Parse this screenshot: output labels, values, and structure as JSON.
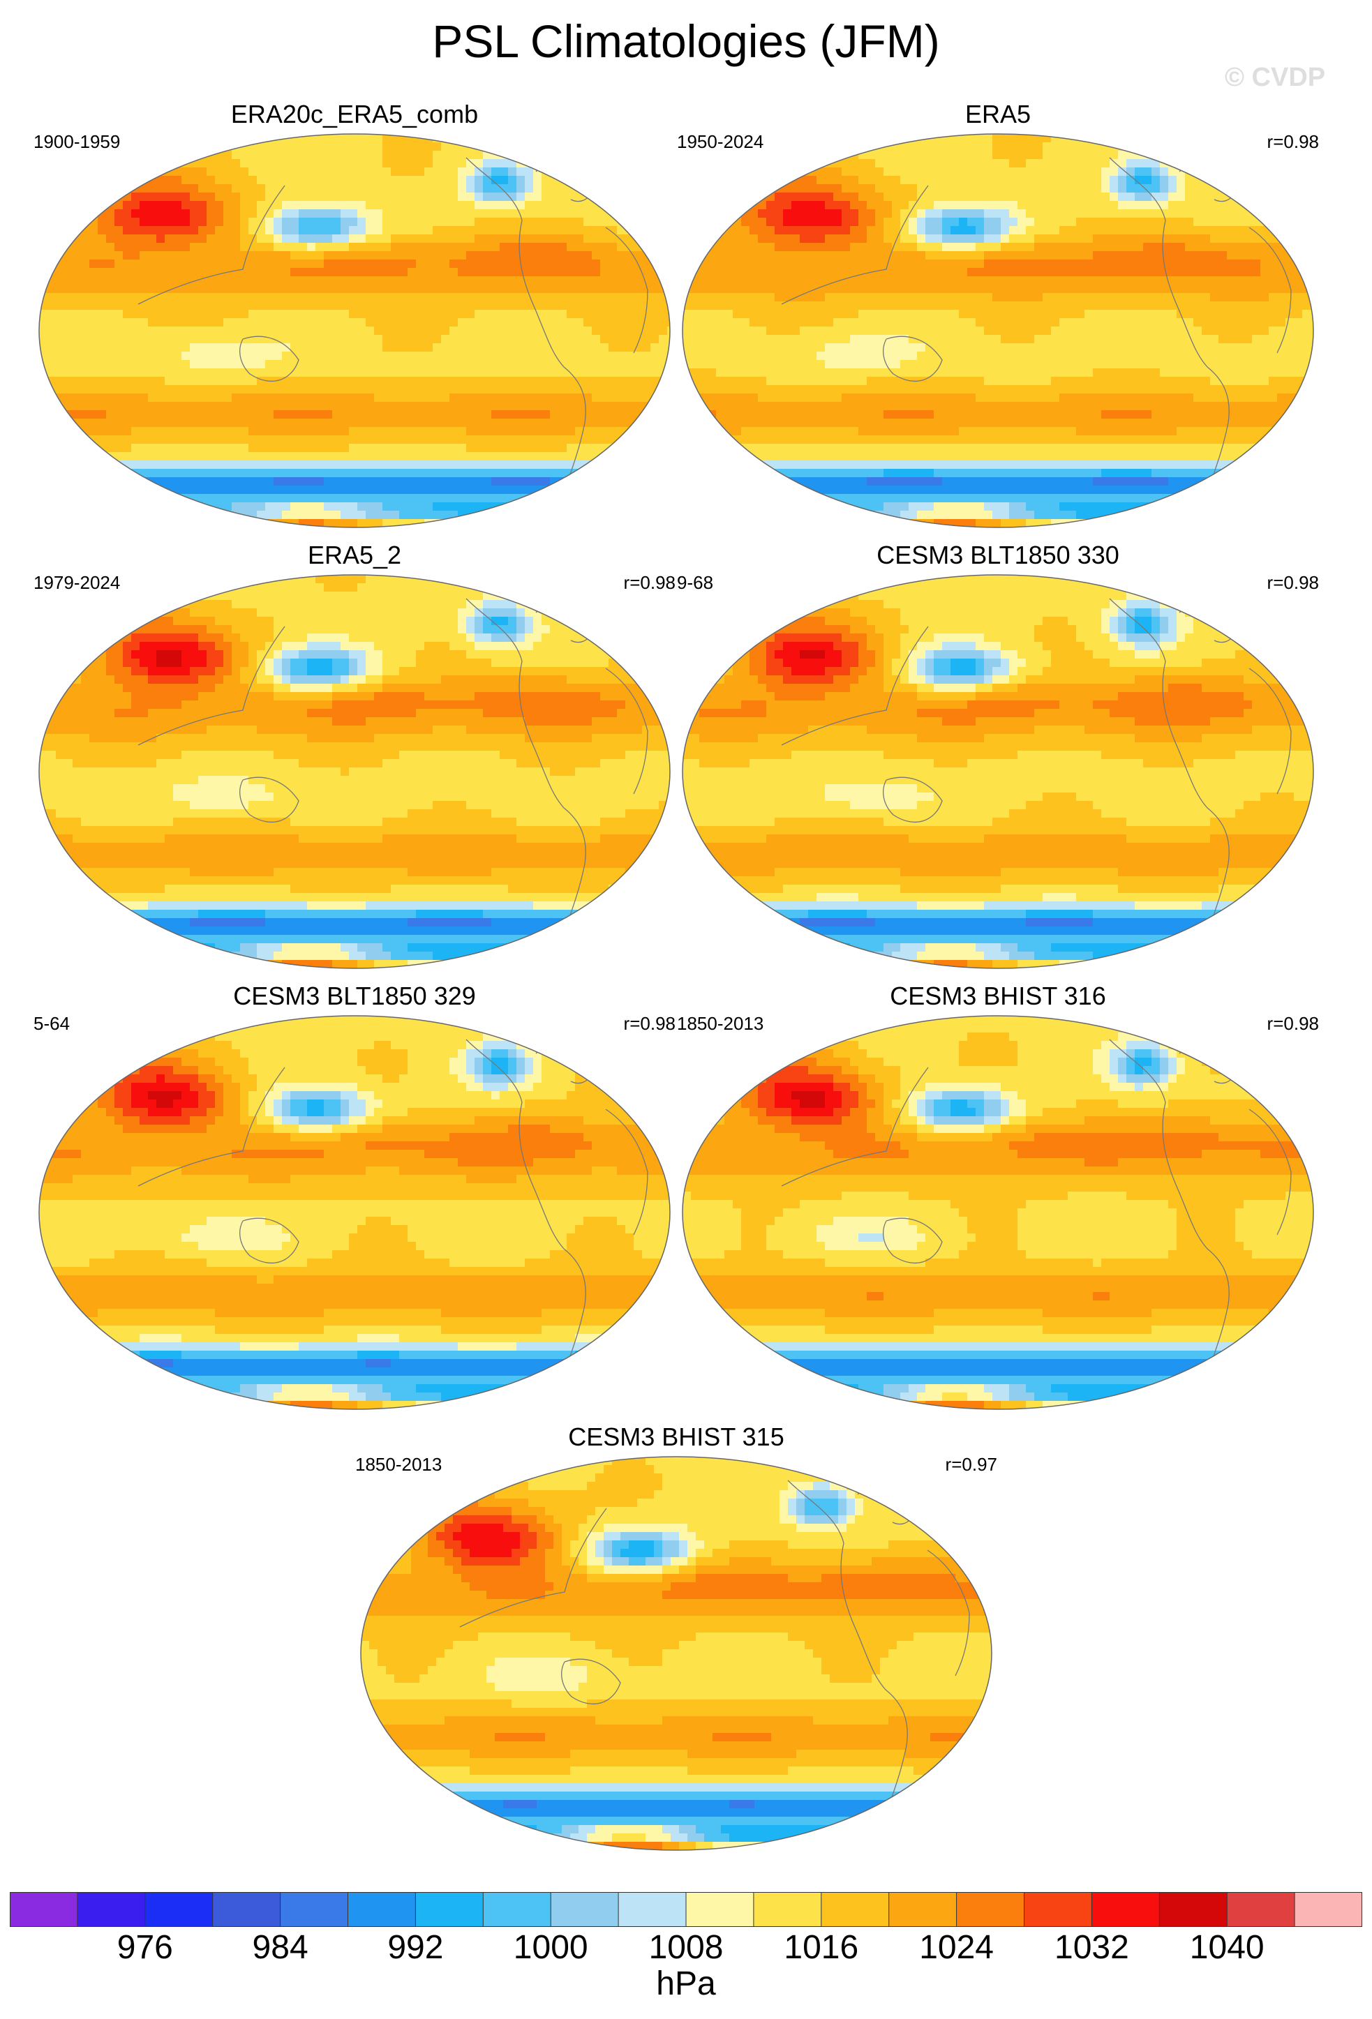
{
  "title": "PSL Climatologies (JFM)",
  "watermark": "© CVDP",
  "panels": [
    {
      "title": "ERA20c_ERA5_comb",
      "years": "1900-1959",
      "corr": "",
      "variant": 0
    },
    {
      "title": "ERA5",
      "years": "1950-2024",
      "corr": "r=0.98",
      "variant": 1
    },
    {
      "title": "ERA5_2",
      "years": "1979-2024",
      "corr": "r=0.98",
      "variant": 2
    },
    {
      "title": "CESM3 BLT1850 330",
      "years": "9-68",
      "corr": "r=0.98",
      "variant": 3
    },
    {
      "title": "CESM3 BLT1850 329",
      "years": "5-64",
      "corr": "r=0.98",
      "variant": 4
    },
    {
      "title": "CESM3 BHIST 316",
      "years": "1850-2013",
      "corr": "r=0.98",
      "variant": 5
    },
    {
      "title": "CESM3 BHIST 315",
      "years": "1850-2013",
      "corr": "r=0.97",
      "variant": 6
    }
  ],
  "colorbar": {
    "units": "hPa",
    "labels": [
      "976",
      "984",
      "992",
      "1000",
      "1008",
      "1016",
      "1024",
      "1032",
      "1040"
    ],
    "colors": [
      "#8a2be2",
      "#3a1ef0",
      "#1a2ef5",
      "#3b5bdb",
      "#3a7ae8",
      "#1f94f0",
      "#1cb4f5",
      "#4dc3f5",
      "#90cdee",
      "#bde3f6",
      "#fff7a8",
      "#fde24a",
      "#fdc21e",
      "#fca611",
      "#fb7f0c",
      "#f84413",
      "#f90e0e",
      "#d40808",
      "#e04040",
      "#fbb5b5"
    ],
    "level_step": 4,
    "first_level": 968
  }
}
